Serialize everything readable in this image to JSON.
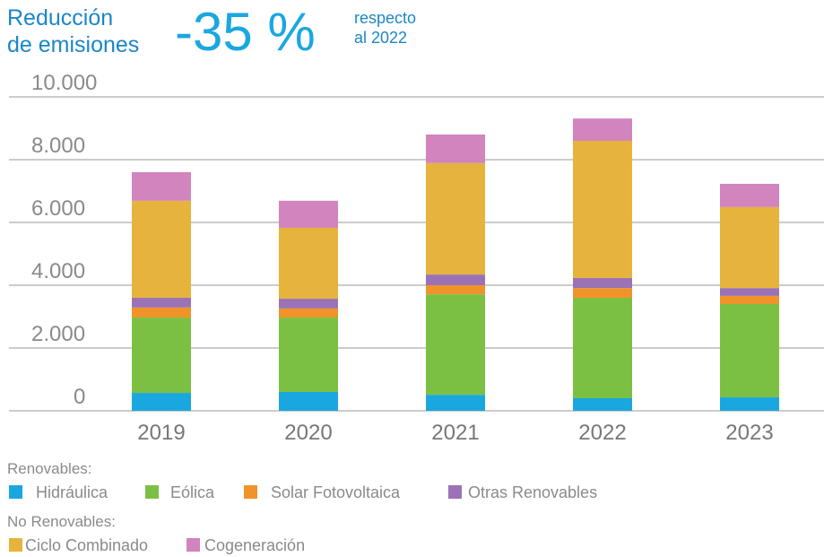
{
  "header": {
    "title_lines": [
      "Reducción",
      "de emisiones"
    ],
    "highlight": "-35 %",
    "note_lines": [
      "respecto",
      "al 2022"
    ]
  },
  "chart_data": {
    "type": "bar",
    "stacked": true,
    "categories": [
      "2019",
      "2020",
      "2021",
      "2022",
      "2023"
    ],
    "series": [
      {
        "name": "Hidráulica",
        "color": "#1aa7e0",
        "values": [
          570,
          600,
          510,
          400,
          430
        ]
      },
      {
        "name": "Eólica",
        "color": "#7bc043",
        "values": [
          2400,
          2370,
          3200,
          3200,
          2970
        ]
      },
      {
        "name": "Solar Fotovoltaica",
        "color": "#f0942a",
        "values": [
          320,
          290,
          290,
          310,
          260
        ]
      },
      {
        "name": "Otras Renovables",
        "color": "#9b72b5",
        "values": [
          310,
          310,
          340,
          320,
          250
        ]
      },
      {
        "name": "Ciclo Combinado",
        "color": "#e6b43c",
        "values": [
          3090,
          2260,
          3550,
          4370,
          2580
        ]
      },
      {
        "name": "Cogeneración",
        "color": "#d184bd",
        "values": [
          910,
          860,
          910,
          710,
          740
        ]
      }
    ],
    "ylim": [
      0,
      10000
    ],
    "yticks": [
      0,
      {
        "value": 2000,
        "label": "2.000"
      },
      {
        "value": 4000,
        "label": "4.000"
      },
      {
        "value": 6000,
        "label": "6.000"
      },
      {
        "value": 8000,
        "label": "8.000"
      },
      {
        "value": 10000,
        "label": "10.000"
      }
    ],
    "grid": true,
    "legend_groups": [
      {
        "title": "Renovables:"
      },
      {
        "title": "No Renovables:"
      }
    ]
  }
}
